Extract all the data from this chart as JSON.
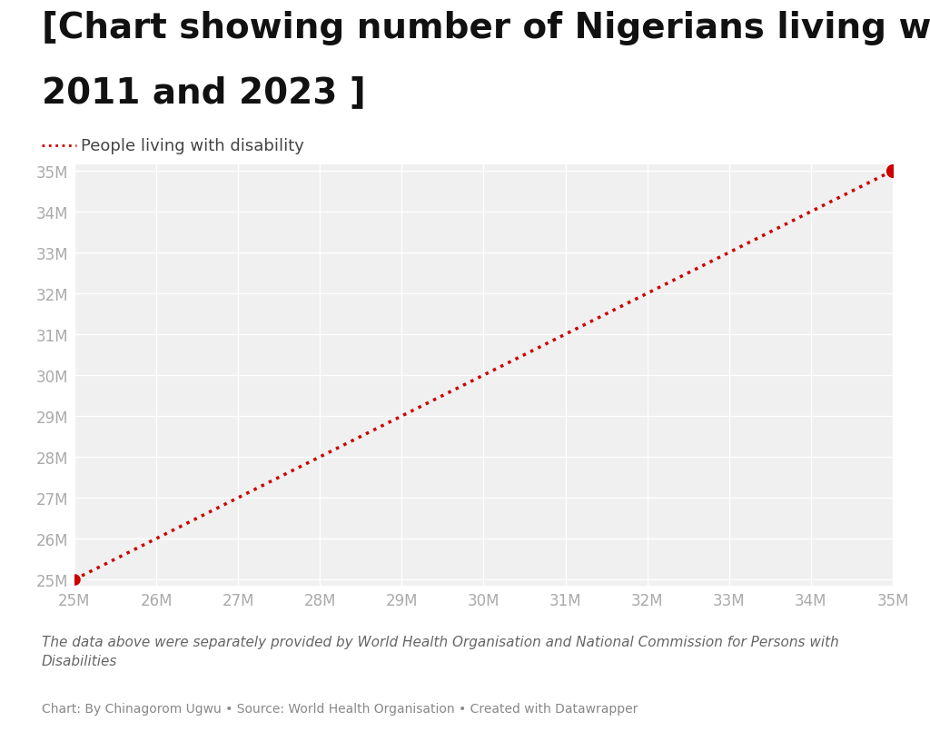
{
  "title_line1": "[Chart showing number of Nigerians living with disability in",
  "title_line2": "2011 and 2023 ]",
  "legend_label": "People living with disability",
  "x_values": [
    25000000,
    35000000
  ],
  "y_values": [
    25000000,
    35000000
  ],
  "x_start": 25000000,
  "x_end": 35000000,
  "y_start": 25000000,
  "y_end": 35000000,
  "x_ticks": [
    25000000,
    26000000,
    27000000,
    28000000,
    29000000,
    30000000,
    31000000,
    32000000,
    33000000,
    34000000,
    35000000
  ],
  "y_ticks": [
    25000000,
    26000000,
    27000000,
    28000000,
    29000000,
    30000000,
    31000000,
    32000000,
    33000000,
    34000000,
    35000000
  ],
  "line_color": "#cc0000",
  "dot_color": "#cc0000",
  "background_color": "#ffffff",
  "plot_bg_color": "#f0f0f0",
  "grid_color": "#ffffff",
  "title_fontsize": 28,
  "legend_fontsize": 13,
  "tick_fontsize": 12,
  "note_text": "The data above were separately provided by World Health Organisation and National Commission for Persons with\nDisabilities",
  "source_text": "Chart: By Chinagorom Ugwu • Source: World Health Organisation • Created with Datawrapper"
}
